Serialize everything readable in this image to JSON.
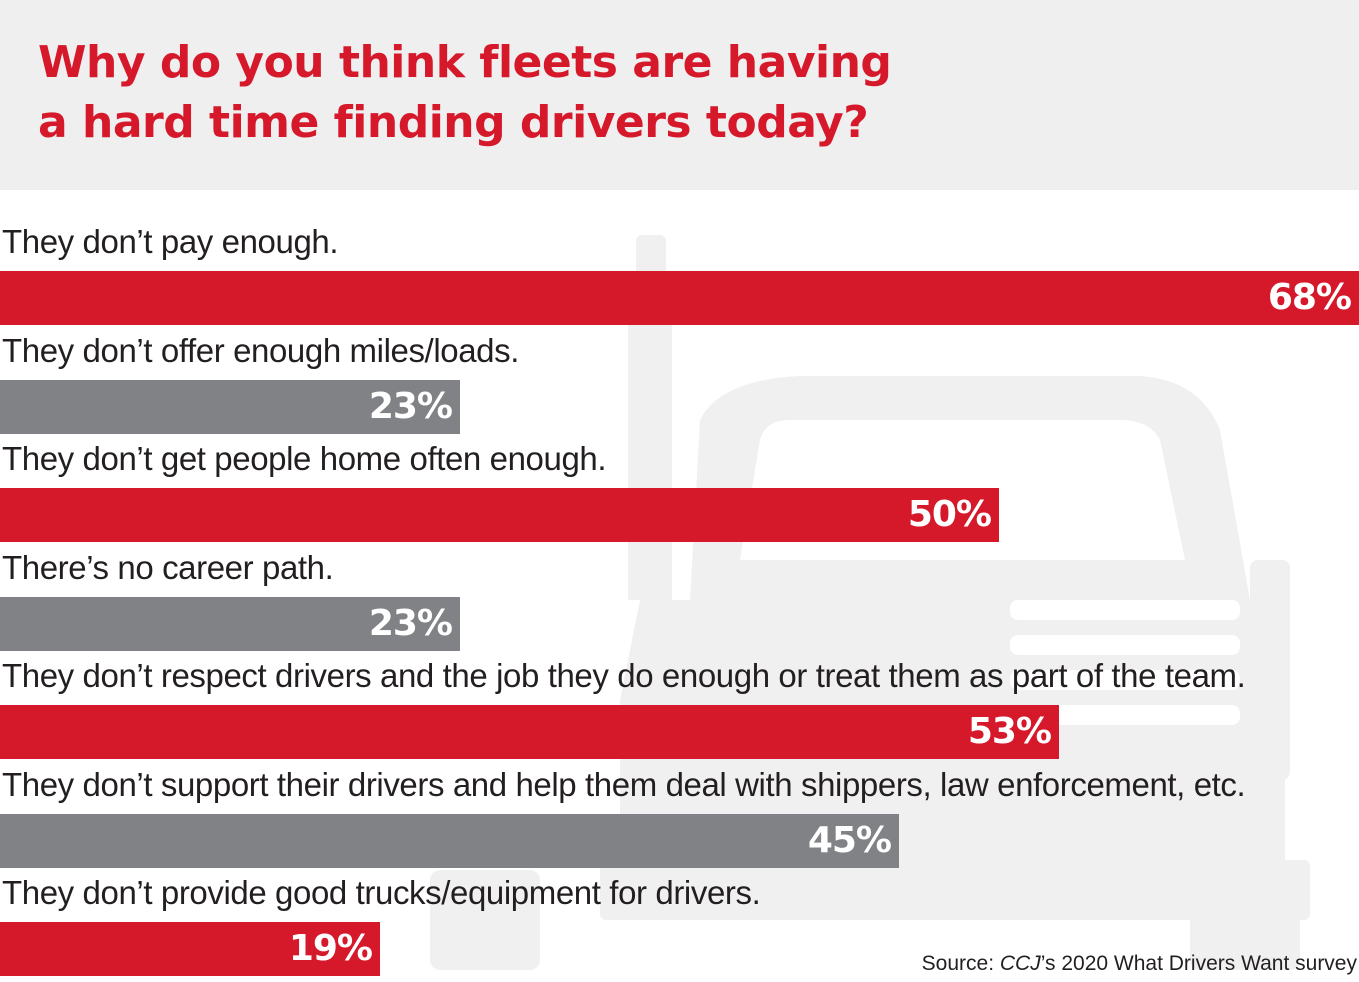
{
  "chart_data": {
    "type": "bar",
    "orientation": "horizontal",
    "title": "Why do you think fleets are having a hard time finding drivers today?",
    "title_lines": [
      "Why do you think fleets are having",
      "a hard time finding drivers today?"
    ],
    "categories": [
      "They don’t pay enough.",
      "They don’t offer enough miles/loads.",
      "They don’t get people home often enough.",
      "There’s no career path.",
      "They don’t respect drivers and the job they do enough or treat them as part of the team.",
      "They don’t support their drivers and help them deal with shippers, law enforcement, etc.",
      "They don’t provide good trucks/equipment for drivers."
    ],
    "values": [
      68,
      23,
      50,
      23,
      53,
      45,
      19
    ],
    "value_labels": [
      "68%",
      "23%",
      "50%",
      "23%",
      "53%",
      "45%",
      "19%"
    ],
    "unit": "%",
    "xlim": [
      0,
      68
    ],
    "grid": false,
    "colors": [
      "#d6182b",
      "#808285",
      "#d6182b",
      "#808285",
      "#d6182b",
      "#808285",
      "#d6182b"
    ]
  },
  "source": {
    "prefix": "Source: ",
    "publication": "CCJ",
    "suffix": "’s 2020 What Drivers Want survey"
  },
  "colors": {
    "accent_red": "#d6182b",
    "bar_gray": "#808285",
    "header_bg": "#efefef",
    "truck_silhouette": "#f0f0f0"
  },
  "background_icon": "semi-truck-silhouette"
}
